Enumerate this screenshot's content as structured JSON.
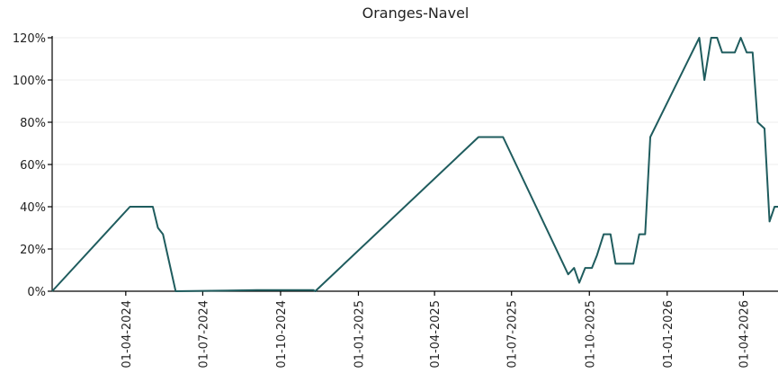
{
  "chart_data": {
    "type": "line",
    "title": "Oranges-Navel",
    "x": [
      "2024-01-05",
      "2024-04-06",
      "2024-05-03",
      "2024-05-09",
      "2024-05-15",
      "2024-05-30",
      "2024-09-03",
      "2024-11-09",
      "2024-11-11",
      "2025-05-23",
      "2025-06-21",
      "2025-09-06",
      "2025-09-13",
      "2025-09-19",
      "2025-09-26",
      "2025-10-04",
      "2025-10-10",
      "2025-10-18",
      "2025-10-26",
      "2025-11-01",
      "2025-11-22",
      "2025-11-29",
      "2025-12-06",
      "2025-12-12",
      "2026-02-08",
      "2026-02-14",
      "2026-02-22",
      "2026-03-01",
      "2026-03-07",
      "2026-03-22",
      "2026-03-29",
      "2026-04-05",
      "2026-04-12",
      "2026-04-18",
      "2026-04-26",
      "2026-05-02",
      "2026-05-08",
      "2026-05-12"
    ],
    "series": [
      {
        "name": "Oranges-Navel",
        "color": "#1f5c5e",
        "values": [
          0,
          40,
          40,
          30,
          27,
          0,
          0.5,
          0.5,
          0,
          73,
          73,
          8,
          11,
          4,
          11,
          11,
          17,
          27,
          27,
          13,
          13,
          27,
          27,
          73,
          120,
          100,
          120,
          120,
          113,
          113,
          120,
          113,
          113,
          80,
          77,
          33,
          40,
          40
        ]
      }
    ],
    "xlim": [
      "2024-01-05",
      "2026-05-12"
    ],
    "xticks": [
      {
        "value": "2024-04-01",
        "label": "01-04-2024"
      },
      {
        "value": "2024-07-01",
        "label": "01-07-2024"
      },
      {
        "value": "2024-10-01",
        "label": "01-10-2024"
      },
      {
        "value": "2025-01-01",
        "label": "01-01-2025"
      },
      {
        "value": "2025-04-01",
        "label": "01-04-2025"
      },
      {
        "value": "2025-07-01",
        "label": "01-07-2025"
      },
      {
        "value": "2025-10-01",
        "label": "01-10-2025"
      },
      {
        "value": "2026-01-01",
        "label": "01-01-2026"
      },
      {
        "value": "2026-04-01",
        "label": "01-04-2026"
      }
    ],
    "ylim": [
      0,
      120
    ],
    "yticks": [
      {
        "value": 0,
        "label": "0%"
      },
      {
        "value": 20,
        "label": "20%"
      },
      {
        "value": 40,
        "label": "40%"
      },
      {
        "value": 60,
        "label": "60%"
      },
      {
        "value": 80,
        "label": "80%"
      },
      {
        "value": 100,
        "label": "100%"
      },
      {
        "value": 120,
        "label": "120%"
      }
    ],
    "grid": true
  }
}
